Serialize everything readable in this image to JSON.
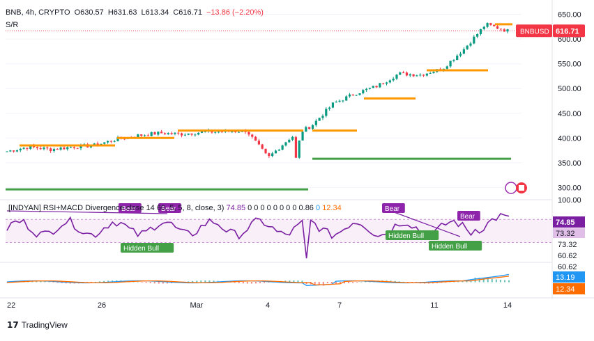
{
  "header": {
    "symbol": "BNB, 4h, CRYPTO",
    "open": "O630.57",
    "high": "H631.63",
    "low": "L613.34",
    "close": "C616.71",
    "change": "−13.86 (−2.20%)",
    "indicator": "S/R"
  },
  "rsi_header": {
    "name": "[INDYAN] RSI+MACD Divergence",
    "params": "close 14 60, 5, 5, 8, close, 3)",
    "value": "74.85",
    "zeros": "0 0 0 0 0 0 0 0 0.86",
    "v2": "0",
    "v3": "12.34"
  },
  "price_tag": {
    "symbol": "BNBUSD",
    "price": "616.71"
  },
  "rsi_tags": [
    "74.85",
    "73.32"
  ],
  "macd_tags": [
    "13.19",
    "12.34"
  ],
  "brand": "TradingView",
  "colors": {
    "up": "#089981",
    "down": "#f23645",
    "sr_orange": "#ff9800",
    "support_green": "#43a047",
    "rsi_purple": "#7b1fa2",
    "macd_blue": "#2196f3",
    "signal_orange": "#ff6d00"
  },
  "chart_data": [
    {
      "type": "candlestick",
      "title": "BNB, 4h, CRYPTO",
      "y_axis_labels": [
        "650.00",
        "600.00",
        "550.00",
        "500.00",
        "450.00",
        "400.00",
        "350.00",
        "300.00"
      ],
      "ylim": [
        285,
        665
      ],
      "x_tick_labels": [
        "22",
        "26",
        "Mar",
        "4",
        "7",
        "11",
        "14"
      ],
      "series": [
        {
          "name": "BNBUSD",
          "close_path": [
            [
              "22",
              373
            ],
            [
              "23",
              382
            ],
            [
              "24",
              377
            ],
            [
              "25",
              382
            ],
            [
              "26",
              385
            ],
            [
              "27",
              397
            ],
            [
              "28",
              405
            ],
            [
              "Mar 1",
              410
            ],
            [
              "Mar 2",
              408
            ],
            [
              "Mar 3",
              412
            ],
            [
              "Mar 4",
              413
            ],
            [
              "Mar 5",
              415
            ],
            [
              "Mar 6",
              360
            ],
            [
              "Mar 6b",
              400
            ],
            [
              "Mar 7",
              425
            ],
            [
              "Mar 8",
              470
            ],
            [
              "Mar 9",
              490
            ],
            [
              "Mar 10",
              505
            ],
            [
              "Mar 11",
              530
            ],
            [
              "Mar 12",
              528
            ],
            [
              "Mar 13",
              540
            ],
            [
              "Mar 14a",
              580
            ],
            [
              "Mar 14b",
              630
            ],
            [
              "Mar 14c",
              616.71
            ]
          ]
        }
      ],
      "resistance_levels": [
        385,
        400,
        415,
        480,
        537,
        630
      ],
      "support_levels": [
        296,
        358
      ]
    },
    {
      "type": "line",
      "title": "[INDYAN] RSI+MACD Divergence",
      "y_axis_labels": [
        "100.00",
        "73.32",
        "60.62"
      ],
      "series": [
        {
          "name": "RSI",
          "last": 74.85
        }
      ],
      "annotations": [
        "Bear",
        "Bear",
        "Bear",
        "Bear",
        "Hidden Bull",
        "Hidden Bull",
        "Hidden Bull"
      ]
    },
    {
      "type": "line",
      "title": "MACD",
      "y_axis_labels": [
        "60.62"
      ],
      "series": [
        {
          "name": "MACD",
          "last": 13.19
        },
        {
          "name": "Signal",
          "last": 12.34
        }
      ]
    }
  ],
  "axis_right_extra": [
    "100.00",
    "73.32",
    "60.62",
    "60.62"
  ]
}
